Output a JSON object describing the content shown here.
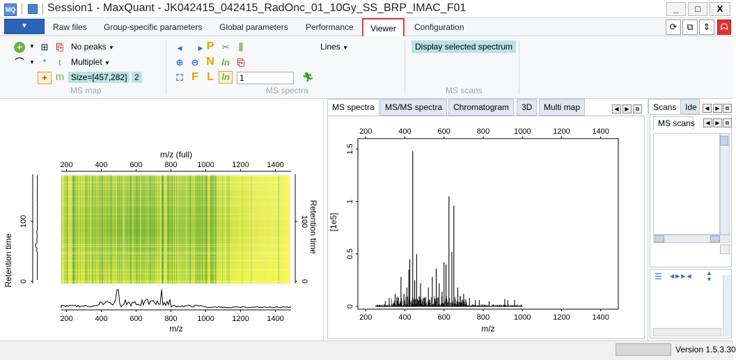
{
  "window": {
    "app_icon_text": "MQ",
    "title": "Session1 - MaxQuant - JK042415_042415_RadOnc_01_10Gy_SS_BRP_IMAC_F01",
    "minimize": "_",
    "maximize": "□",
    "close": "X"
  },
  "tabs": [
    "Raw files",
    "Group-specific parameters",
    "Global parameters",
    "Performance",
    "Viewer",
    "Configuration"
  ],
  "ribbon": {
    "ms_map": {
      "label": "MS map",
      "peaks_select": "No peaks",
      "multiplet_select": "Multiplet",
      "size_chip": "Size=[457,282]",
      "count_chip": "2"
    },
    "ms_spectra": {
      "label": "MS spectra",
      "lines_select": "Lines",
      "input_value": "1"
    },
    "ms_scans": {
      "label": "MS scans",
      "display_button": "Display selected spectrum"
    }
  },
  "ms_map_plot": {
    "top_axis_title": "m/z (full)",
    "bottom_axis_title": "m/z",
    "left_axis_title": "Retention time",
    "right_axis_title": "Retention time",
    "x_ticks": [
      "200",
      "400",
      "600",
      "800",
      "1000",
      "1200",
      "1400"
    ],
    "y_ticks_left": [
      "0",
      "100"
    ],
    "y_ticks_right": [
      "0",
      "100"
    ]
  },
  "spectra_tabs": [
    "MS spectra",
    "MS/MS spectra",
    "Chromatogram",
    "3D",
    "Multi map"
  ],
  "right_tabs": [
    "Scans",
    "Ide"
  ],
  "right_subtab": "MS scans",
  "status": {
    "version": "Version 1.5.3.30"
  },
  "chart_data": {
    "type": "bar",
    "title": "",
    "xlabel": "m/z",
    "ylabel": "[1e5]",
    "xlim": [
      160,
      1490
    ],
    "ylim": [
      0,
      1.6
    ],
    "x_ticks": [
      200,
      400,
      600,
      800,
      1000,
      1200,
      1400
    ],
    "y_ticks": [
      0,
      0.5,
      1,
      1.5
    ],
    "peaks": {
      "x": [
        300,
        320,
        350,
        380,
        395,
        410,
        420,
        425,
        440,
        450,
        460,
        480,
        500,
        520,
        540,
        560,
        575,
        590,
        600,
        610,
        625,
        640,
        650,
        670,
        700,
        730,
        760,
        780,
        830,
        910,
        925,
        960
      ],
      "y": [
        0.05,
        0.08,
        0.12,
        0.28,
        0.12,
        0.18,
        0.35,
        0.45,
        1.48,
        0.25,
        0.5,
        0.22,
        0.08,
        0.18,
        0.28,
        0.36,
        0.22,
        0.14,
        0.42,
        0.4,
        1.05,
        0.52,
        0.96,
        0.18,
        0.12,
        0.08,
        0.06,
        0.06,
        0.05,
        0.07,
        0.06,
        0.06
      ]
    }
  }
}
